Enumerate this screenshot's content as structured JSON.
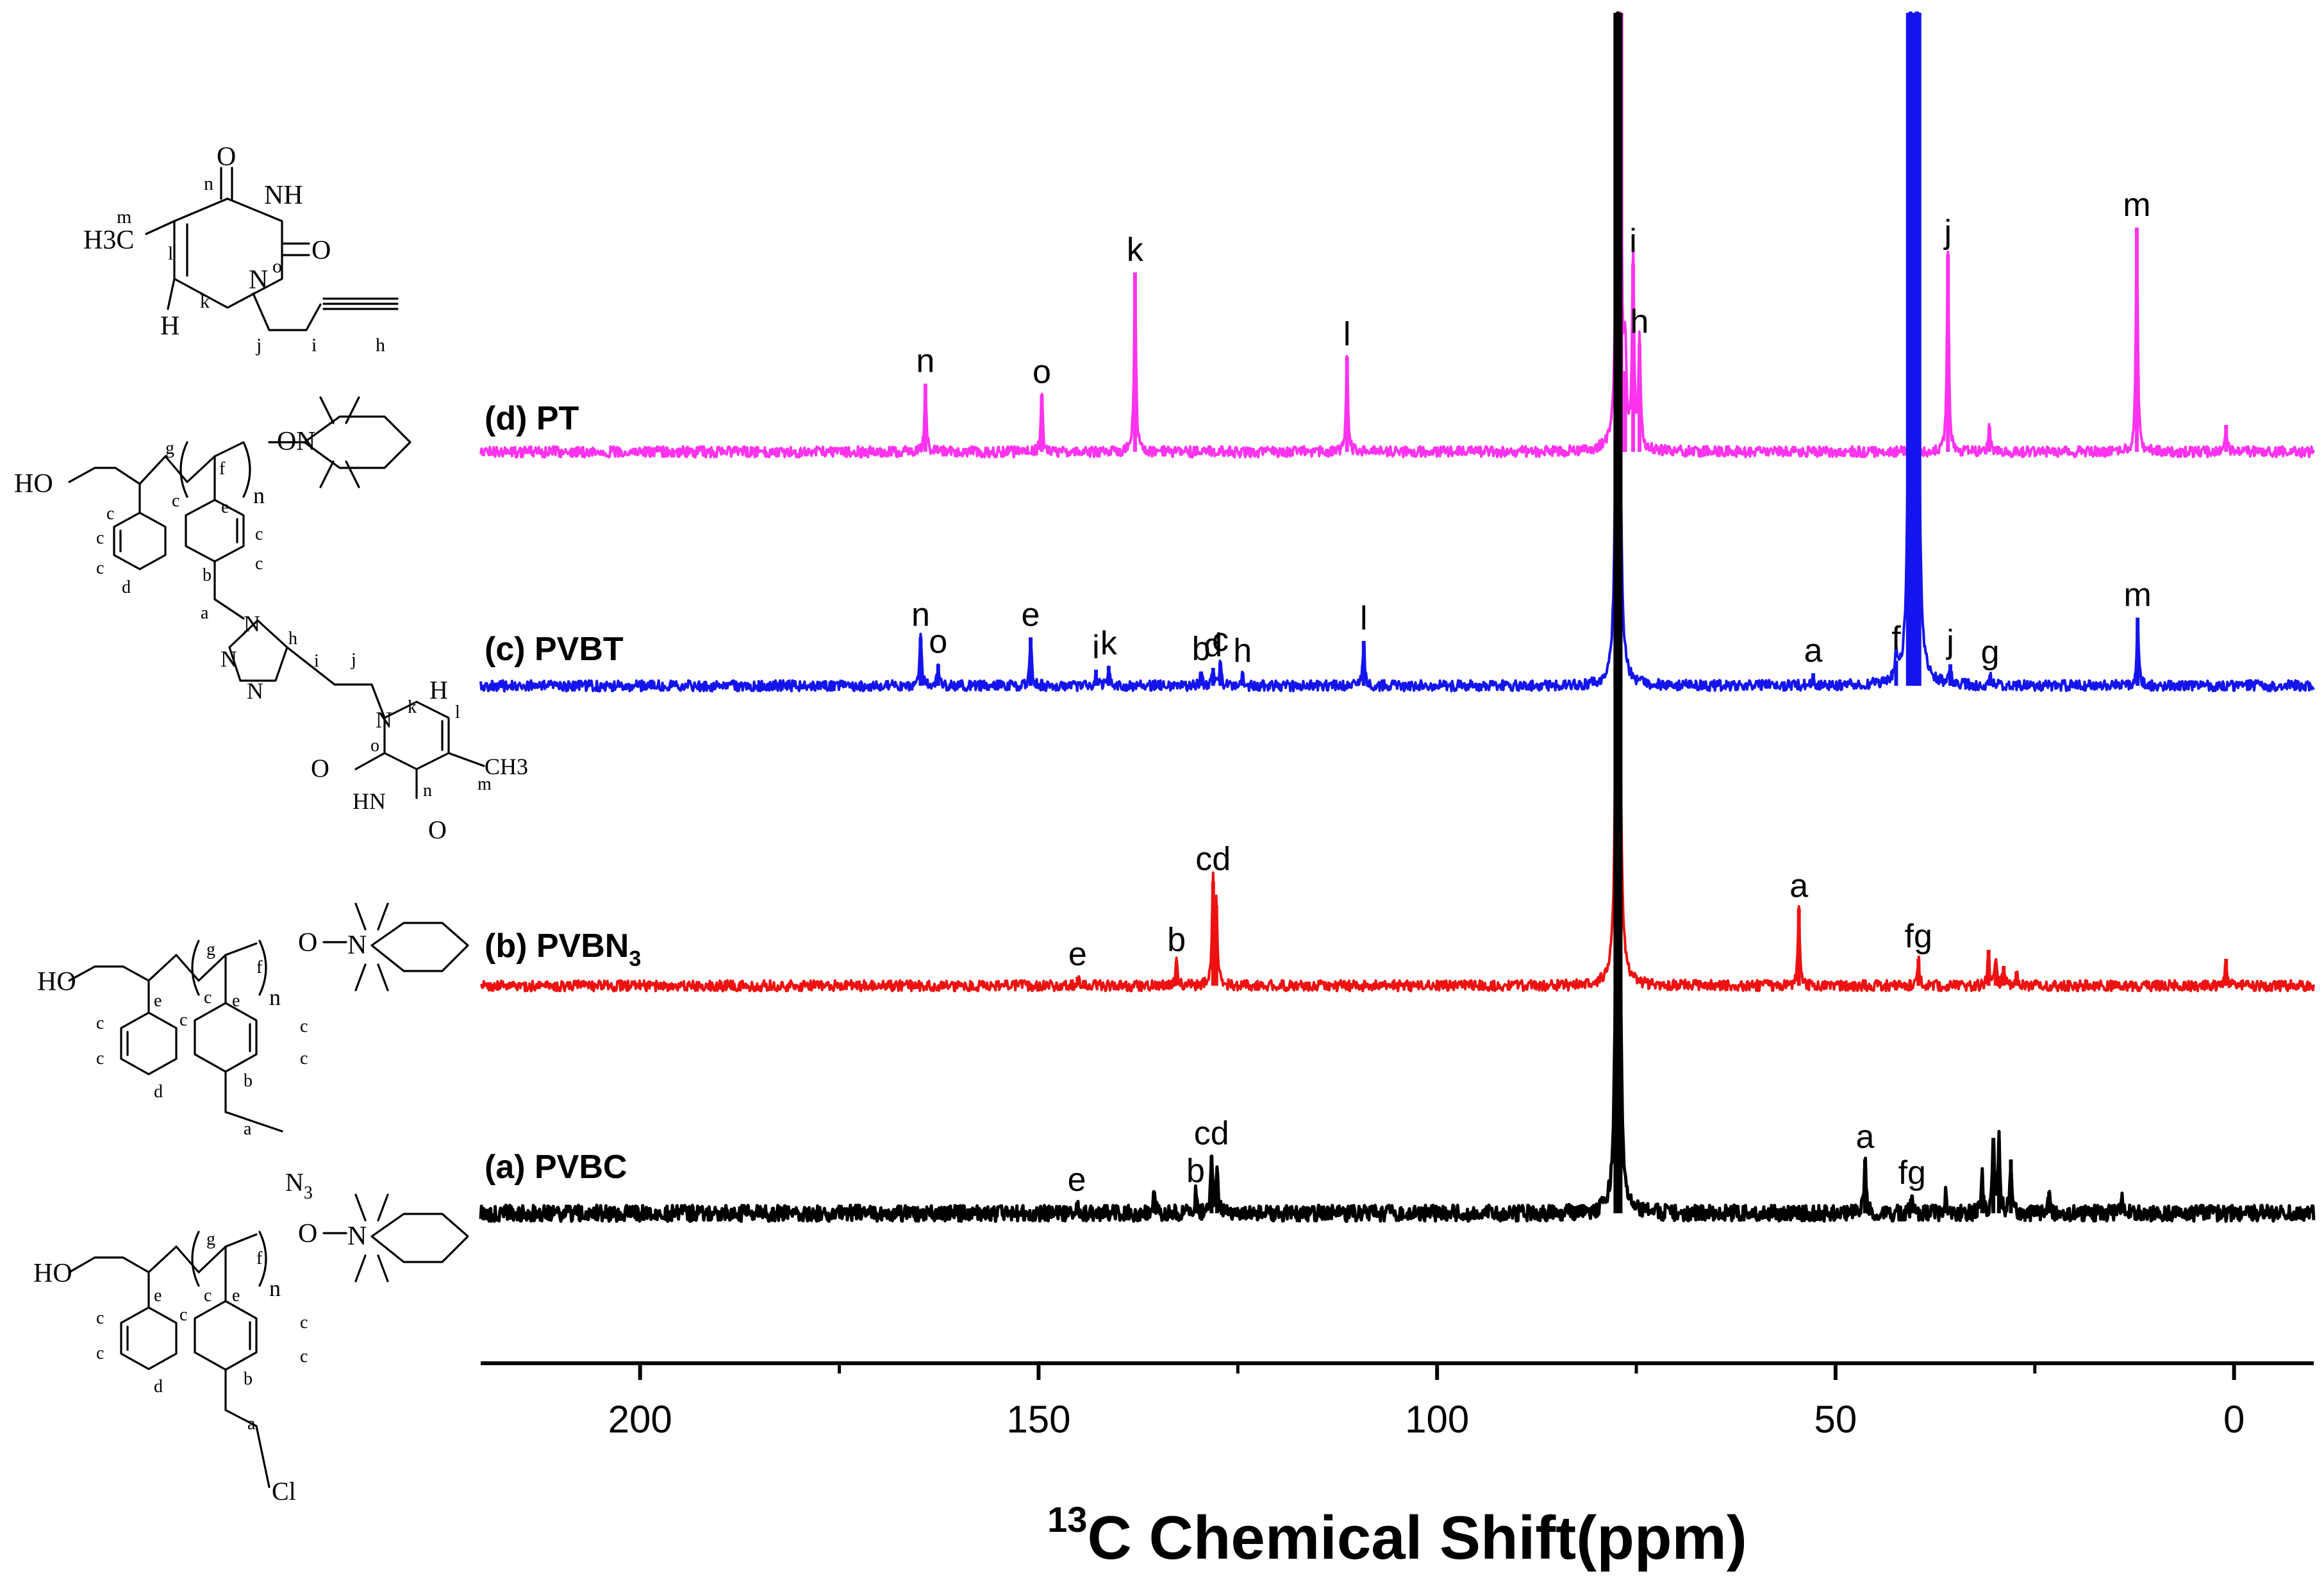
{
  "chart_data": {
    "type": "line",
    "title": "",
    "xlabel_sup": "13",
    "xlabel": "C Chemical Shift(ppm)",
    "ylabel": "",
    "xlim": [
      220,
      -10
    ],
    "x_reversed": true,
    "x_ticks": [
      200,
      150,
      100,
      50,
      0
    ],
    "x_tick_labels": [
      "200",
      "150",
      "100",
      "50",
      "0"
    ],
    "x_minor_ticks": [
      175,
      125,
      75,
      25
    ],
    "grid": false,
    "legend": "none",
    "series": [
      {
        "name": "(d) PT",
        "label": "(d) PT",
        "color": "#ff33ee",
        "peaks": [
          {
            "ppm": 164.2,
            "height": 0.38,
            "label": "n"
          },
          {
            "ppm": 149.6,
            "height": 0.32,
            "label": "o"
          },
          {
            "ppm": 137.9,
            "height": 1.0,
            "label": "k"
          },
          {
            "ppm": 111.3,
            "height": 0.53,
            "label": "l"
          },
          {
            "ppm": 77.2,
            "height": 9.0,
            "label": ""
          },
          {
            "ppm": 76.4,
            "height": 0.45,
            "label": ""
          },
          {
            "ppm": 75.4,
            "height": 1.05,
            "label": "i"
          },
          {
            "ppm": 74.6,
            "height": 0.6,
            "label": "h"
          },
          {
            "ppm": 35.9,
            "height": 1.1,
            "label": "j"
          },
          {
            "ppm": 30.7,
            "height": 0.14,
            "label": ""
          },
          {
            "ppm": 12.2,
            "height": 1.25,
            "label": "m"
          },
          {
            "ppm": 1.0,
            "height": 0.15,
            "label": ""
          }
        ]
      },
      {
        "name": "(c) PVBT",
        "label": "(c) PVBT",
        "color": "#1414ee",
        "peaks": [
          {
            "ppm": 164.8,
            "height": 0.27,
            "label": "n"
          },
          {
            "ppm": 162.6,
            "height": 0.12,
            "label": "o"
          },
          {
            "ppm": 151.0,
            "height": 0.27,
            "label": "e"
          },
          {
            "ppm": 142.8,
            "height": 0.09,
            "label": "i"
          },
          {
            "ppm": 141.2,
            "height": 0.11,
            "label": "k"
          },
          {
            "ppm": 129.6,
            "height": 0.08,
            "label": "b"
          },
          {
            "ppm": 128.1,
            "height": 0.1,
            "label": "d"
          },
          {
            "ppm": 127.2,
            "height": 0.13,
            "label": "c"
          },
          {
            "ppm": 124.4,
            "height": 0.07,
            "label": "h"
          },
          {
            "ppm": 109.2,
            "height": 0.25,
            "label": "l"
          },
          {
            "ppm": 77.3,
            "height": 9.0,
            "label": ""
          },
          {
            "ppm": 52.8,
            "height": 0.07,
            "label": "a"
          },
          {
            "ppm": 42.4,
            "height": 0.14,
            "label": "f"
          },
          {
            "ppm": 40.6,
            "height": 8.0,
            "label": ""
          },
          {
            "ppm": 39.8,
            "height": 8.0,
            "label": ""
          },
          {
            "ppm": 35.6,
            "height": 0.12,
            "label": "j"
          },
          {
            "ppm": 30.6,
            "height": 0.06,
            "label": "g"
          },
          {
            "ppm": 12.1,
            "height": 0.38,
            "label": "m"
          }
        ]
      },
      {
        "name": "(b) PVBN3",
        "label": "(b) PVBN",
        "label_sub": "3",
        "color": "#ee1111",
        "peaks": [
          {
            "ppm": 145.1,
            "height": 0.05,
            "label": "e"
          },
          {
            "ppm": 132.7,
            "height": 0.13,
            "label": "b"
          },
          {
            "ppm": 128.1,
            "height": 0.58,
            "label": "cd"
          },
          {
            "ppm": 127.7,
            "height": 0.45,
            "label": ""
          },
          {
            "ppm": 77.3,
            "height": 9.0,
            "label": ""
          },
          {
            "ppm": 54.6,
            "height": 0.43,
            "label": "a"
          },
          {
            "ppm": 39.6,
            "height": 0.15,
            "label": "fg"
          },
          {
            "ppm": 30.8,
            "height": 0.2,
            "label": ""
          },
          {
            "ppm": 29.9,
            "height": 0.13,
            "label": ""
          },
          {
            "ppm": 28.9,
            "height": 0.11,
            "label": ""
          },
          {
            "ppm": 27.3,
            "height": 0.08,
            "label": ""
          },
          {
            "ppm": 1.0,
            "height": 0.15,
            "label": ""
          }
        ]
      },
      {
        "name": "(a) PVBC",
        "label": "(a) PVBC",
        "color": "#000000",
        "peaks": [
          {
            "ppm": 145.2,
            "height": 0.06,
            "label": "e"
          },
          {
            "ppm": 135.5,
            "height": 0.1,
            "label": ""
          },
          {
            "ppm": 130.3,
            "height": 0.11,
            "label": "b"
          },
          {
            "ppm": 128.3,
            "height": 0.32,
            "label": "cd"
          },
          {
            "ppm": 127.6,
            "height": 0.22,
            "label": ""
          },
          {
            "ppm": 77.3,
            "height": 9.0,
            "label": ""
          },
          {
            "ppm": 46.3,
            "height": 0.3,
            "label": "a"
          },
          {
            "ppm": 40.4,
            "height": 0.1,
            "label": "fg"
          },
          {
            "ppm": 36.2,
            "height": 0.1,
            "label": ""
          },
          {
            "ppm": 31.6,
            "height": 0.2,
            "label": ""
          },
          {
            "ppm": 30.2,
            "height": 0.42,
            "label": ""
          },
          {
            "ppm": 29.5,
            "height": 0.4,
            "label": ""
          },
          {
            "ppm": 28.0,
            "height": 0.3,
            "label": ""
          },
          {
            "ppm": 23.2,
            "height": 0.12,
            "label": ""
          },
          {
            "ppm": 14.1,
            "height": 0.08,
            "label": ""
          }
        ]
      }
    ]
  },
  "structures": {
    "pt": {
      "atoms": [
        "O",
        "NH",
        "O",
        "H3C",
        "N",
        "H"
      ],
      "locants": [
        "n",
        "m",
        "o",
        "l",
        "k",
        "j",
        "i",
        "h"
      ]
    },
    "pvbt": {
      "atoms": [
        "HO",
        "O",
        "N",
        "N",
        "N",
        "N",
        "N",
        "O",
        "HN",
        "O",
        "H",
        "CH3"
      ],
      "subscript": "n",
      "locants": [
        "g",
        "f",
        "e",
        "c",
        "c",
        "c",
        "c",
        "c",
        "c",
        "d",
        "b",
        "a",
        "h",
        "i",
        "j",
        "k",
        "l",
        "o",
        "n",
        "m"
      ]
    },
    "pvbn3": {
      "atoms": [
        "HO",
        "O",
        "N",
        "N"
      ],
      "azide_sub": "3",
      "subscript": "n",
      "locants": [
        "g",
        "f",
        "e",
        "e",
        "c",
        "c",
        "c",
        "c",
        "c",
        "c",
        "d",
        "b",
        "a"
      ]
    },
    "pvbc": {
      "atoms": [
        "HO",
        "O",
        "N",
        "Cl"
      ],
      "subscript": "n",
      "locants": [
        "g",
        "f",
        "e",
        "e",
        "c",
        "c",
        "c",
        "c",
        "c",
        "c",
        "d",
        "b",
        "a"
      ]
    }
  }
}
